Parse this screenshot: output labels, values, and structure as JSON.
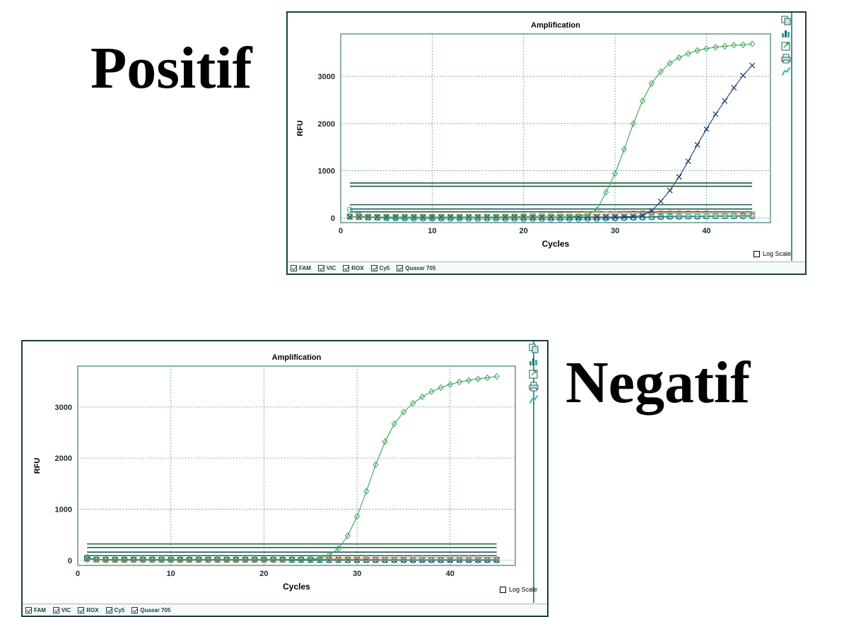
{
  "labels": {
    "positive": "Positif",
    "negative": "Negatif"
  },
  "common": {
    "log_scale_label": "Log Scale",
    "legend": [
      "FAM",
      "VIC",
      "ROX",
      "Cy5",
      "Quasar 705"
    ],
    "tool_icons": [
      "copy-icon",
      "chart-type-icon",
      "export-icon",
      "print-icon",
      "curve-icon"
    ]
  },
  "colors": {
    "FAM": "#3aa35a",
    "Cy5": "#1c3f6e",
    "ROX": "#d4a06b",
    "VIC": "#1b6f6a",
    "Quasar 705": "#2bb3bf",
    "threshold_dark": "#1d5d3a",
    "threshold_teal": "#1b5c5a",
    "grid": "#3b7c78"
  },
  "chart_data": [
    {
      "id": "positive",
      "type": "line",
      "title": "Amplification",
      "xlabel": "Cycles",
      "ylabel": "RFU",
      "xlim": [
        0,
        47
      ],
      "ylim": [
        -100,
        3900
      ],
      "xticks": [
        0,
        10,
        20,
        30,
        40
      ],
      "yticks": [
        0,
        1000,
        2000,
        3000
      ],
      "grid": true,
      "log_scale": false,
      "series": [
        {
          "name": "FAM",
          "marker": "diamond",
          "x": [
            1,
            2,
            3,
            4,
            5,
            6,
            7,
            8,
            9,
            10,
            11,
            12,
            13,
            14,
            15,
            16,
            17,
            18,
            19,
            20,
            21,
            22,
            23,
            24,
            25,
            26,
            27,
            28,
            29,
            30,
            31,
            32,
            33,
            34,
            35,
            36,
            37,
            38,
            39,
            40,
            41,
            42,
            43,
            44,
            45
          ],
          "values": [
            20,
            20,
            20,
            20,
            20,
            20,
            20,
            20,
            20,
            20,
            20,
            20,
            20,
            20,
            20,
            20,
            20,
            20,
            20,
            20,
            20,
            20,
            20,
            20,
            25,
            40,
            70,
            170,
            540,
            940,
            1450,
            2000,
            2480,
            2850,
            3100,
            3280,
            3400,
            3480,
            3550,
            3590,
            3620,
            3640,
            3660,
            3670,
            3690
          ]
        },
        {
          "name": "Cy5",
          "marker": "x",
          "x": [
            1,
            2,
            3,
            4,
            5,
            6,
            7,
            8,
            9,
            10,
            11,
            12,
            13,
            14,
            15,
            16,
            17,
            18,
            19,
            20,
            21,
            22,
            23,
            24,
            25,
            26,
            27,
            28,
            29,
            30,
            31,
            32,
            33,
            34,
            35,
            36,
            37,
            38,
            39,
            40,
            41,
            42,
            43,
            44,
            45
          ],
          "values": [
            20,
            20,
            20,
            20,
            20,
            20,
            20,
            20,
            20,
            20,
            20,
            20,
            20,
            20,
            20,
            20,
            20,
            20,
            20,
            20,
            20,
            20,
            20,
            20,
            20,
            20,
            20,
            20,
            20,
            20,
            25,
            30,
            50,
            150,
            350,
            580,
            870,
            1200,
            1550,
            1880,
            2200,
            2480,
            2760,
            3020,
            3230
          ]
        },
        {
          "name": "ROX",
          "marker": "square",
          "x": [
            1,
            2,
            3,
            4,
            5,
            6,
            7,
            8,
            9,
            10,
            11,
            12,
            13,
            14,
            15,
            16,
            17,
            18,
            19,
            20,
            21,
            22,
            23,
            24,
            25,
            26,
            27,
            28,
            29,
            30,
            31,
            32,
            33,
            34,
            35,
            36,
            37,
            38,
            39,
            40,
            41,
            42,
            43,
            44,
            45
          ],
          "values": [
            40,
            30,
            25,
            20,
            20,
            20,
            20,
            20,
            20,
            20,
            20,
            20,
            20,
            20,
            20,
            20,
            20,
            25,
            30,
            35,
            40,
            45,
            50,
            55,
            60,
            65,
            70,
            75,
            80,
            85,
            90,
            95,
            100,
            100,
            100,
            100,
            100,
            95,
            95,
            95,
            90,
            90,
            90,
            85,
            85
          ]
        },
        {
          "name": "VIC",
          "marker": "square",
          "x": [
            1,
            2,
            3,
            4,
            5,
            6,
            7,
            8,
            9,
            10,
            11,
            12,
            13,
            14,
            15,
            16,
            17,
            18,
            19,
            20,
            21,
            22,
            23,
            24,
            25,
            26,
            27,
            28,
            29,
            30,
            31,
            32,
            33,
            34,
            35,
            36,
            37,
            38,
            39,
            40,
            41,
            42,
            43,
            44,
            45
          ],
          "values": [
            30,
            20,
            10,
            10,
            10,
            10,
            10,
            10,
            10,
            10,
            10,
            10,
            10,
            10,
            10,
            10,
            10,
            10,
            10,
            10,
            10,
            10,
            10,
            10,
            10,
            10,
            10,
            10,
            10,
            10,
            10,
            15,
            20,
            25,
            30,
            35,
            40,
            40,
            40,
            40,
            45,
            45,
            45,
            50,
            50
          ]
        },
        {
          "name": "Quasar 705",
          "marker": "circle",
          "x": [
            1,
            2,
            3,
            4,
            5,
            6,
            7,
            8,
            9,
            10,
            11,
            12,
            13,
            14,
            15,
            16,
            17,
            18,
            19,
            20,
            21,
            22,
            23,
            24,
            25,
            26,
            27,
            28,
            29,
            30,
            31,
            32,
            33,
            34,
            35,
            36,
            37,
            38,
            39,
            40,
            41,
            42,
            43,
            44,
            45
          ],
          "values": [
            180,
            60,
            20,
            0,
            -10,
            -15,
            -20,
            -20,
            -20,
            -20,
            -20,
            -20,
            -20,
            -25,
            -25,
            -25,
            -25,
            -25,
            -25,
            -30,
            -30,
            -30,
            -30,
            -30,
            -30,
            -30,
            -30,
            -30,
            -20,
            -10,
            -5,
            0,
            5,
            10,
            15,
            20,
            20,
            25,
            25,
            30,
            30,
            30,
            30,
            30,
            30
          ]
        }
      ],
      "thresholds": [
        {
          "value": 740,
          "color_key": "threshold_dark"
        },
        {
          "value": 670,
          "color_key": "threshold_dark"
        },
        {
          "value": 280,
          "color_key": "threshold_teal"
        },
        {
          "value": 190,
          "color_key": "threshold_teal"
        },
        {
          "value": 130,
          "color_key": "threshold_dark"
        }
      ],
      "threshold_xrange": [
        1,
        45
      ]
    },
    {
      "id": "negative",
      "type": "line",
      "title": "Amplification",
      "xlabel": "Cycles",
      "ylabel": "RFU",
      "xlim": [
        0,
        47
      ],
      "ylim": [
        -100,
        3800
      ],
      "xticks": [
        0,
        10,
        20,
        30,
        40
      ],
      "yticks": [
        0,
        1000,
        2000,
        3000
      ],
      "grid": true,
      "log_scale": false,
      "series": [
        {
          "name": "FAM",
          "marker": "diamond",
          "x": [
            1,
            2,
            3,
            4,
            5,
            6,
            7,
            8,
            9,
            10,
            11,
            12,
            13,
            14,
            15,
            16,
            17,
            18,
            19,
            20,
            21,
            22,
            23,
            24,
            25,
            26,
            27,
            28,
            29,
            30,
            31,
            32,
            33,
            34,
            35,
            36,
            37,
            38,
            39,
            40,
            41,
            42,
            43,
            44,
            45
          ],
          "values": [
            20,
            20,
            20,
            20,
            20,
            20,
            20,
            20,
            20,
            20,
            20,
            20,
            20,
            20,
            20,
            20,
            20,
            20,
            20,
            20,
            20,
            20,
            20,
            20,
            25,
            40,
            100,
            230,
            480,
            860,
            1350,
            1870,
            2320,
            2670,
            2900,
            3070,
            3200,
            3300,
            3380,
            3440,
            3490,
            3520,
            3550,
            3570,
            3600
          ]
        },
        {
          "name": "ROX",
          "marker": "triangle",
          "x": [
            1,
            2,
            3,
            4,
            5,
            6,
            7,
            8,
            9,
            10,
            11,
            12,
            13,
            14,
            15,
            16,
            17,
            18,
            19,
            20,
            21,
            22,
            23,
            24,
            25,
            26,
            27,
            28,
            29,
            30,
            31,
            32,
            33,
            34,
            35,
            36,
            37,
            38,
            39,
            40,
            41,
            42,
            43,
            44,
            45
          ],
          "values": [
            20,
            10,
            10,
            10,
            10,
            10,
            10,
            10,
            10,
            10,
            10,
            10,
            10,
            10,
            10,
            10,
            10,
            10,
            10,
            10,
            10,
            10,
            15,
            20,
            20,
            25,
            30,
            30,
            35,
            40,
            40,
            45,
            50,
            50,
            50,
            55,
            55,
            55,
            55,
            55,
            55,
            55,
            55,
            55,
            55
          ]
        },
        {
          "name": "VIC",
          "marker": "square",
          "x": [
            1,
            2,
            3,
            4,
            5,
            6,
            7,
            8,
            9,
            10,
            11,
            12,
            13,
            14,
            15,
            16,
            17,
            18,
            19,
            20,
            21,
            22,
            23,
            24,
            25,
            26,
            27,
            28,
            29,
            30,
            31,
            32,
            33,
            34,
            35,
            36,
            37,
            38,
            39,
            40,
            41,
            42,
            43,
            44,
            45
          ],
          "values": [
            40,
            10,
            10,
            10,
            10,
            10,
            10,
            10,
            10,
            10,
            10,
            10,
            10,
            10,
            10,
            10,
            10,
            10,
            10,
            10,
            10,
            10,
            10,
            10,
            10,
            10,
            10,
            10,
            10,
            10,
            10,
            10,
            10,
            10,
            10,
            10,
            10,
            10,
            10,
            10,
            10,
            10,
            10,
            10,
            10
          ]
        },
        {
          "name": "Cy5",
          "marker": "x",
          "x": [
            1,
            2,
            3,
            4,
            5,
            6,
            7,
            8,
            9,
            10,
            11,
            12,
            13,
            14,
            15,
            16,
            17,
            18,
            19,
            20,
            21,
            22,
            23,
            24,
            25,
            26,
            27,
            28,
            29,
            30,
            31,
            32,
            33,
            34,
            35,
            36,
            37,
            38,
            39,
            40,
            41,
            42,
            43,
            44,
            45
          ],
          "values": [
            30,
            10,
            5,
            5,
            5,
            5,
            5,
            5,
            5,
            5,
            5,
            5,
            5,
            5,
            5,
            5,
            5,
            5,
            5,
            5,
            5,
            5,
            5,
            5,
            5,
            5,
            5,
            5,
            5,
            5,
            5,
            5,
            5,
            5,
            5,
            5,
            5,
            5,
            5,
            5,
            5,
            5,
            5,
            5,
            5
          ]
        },
        {
          "name": "Quasar 705",
          "marker": "circle",
          "x": [
            1,
            2,
            3,
            4,
            5,
            6,
            7,
            8,
            9,
            10,
            11,
            12,
            13,
            14,
            15,
            16,
            17,
            18,
            19,
            20,
            21,
            22,
            23,
            24,
            25,
            26,
            27,
            28,
            29,
            30,
            31,
            32,
            33,
            34,
            35,
            36,
            37,
            38,
            39,
            40,
            41,
            42,
            43,
            44,
            45
          ],
          "values": [
            60,
            10,
            0,
            0,
            0,
            0,
            0,
            0,
            0,
            0,
            0,
            0,
            0,
            0,
            0,
            0,
            0,
            0,
            0,
            0,
            0,
            0,
            0,
            0,
            0,
            0,
            0,
            0,
            0,
            0,
            0,
            0,
            0,
            0,
            0,
            0,
            0,
            0,
            0,
            0,
            0,
            0,
            0,
            0,
            0
          ]
        }
      ],
      "thresholds": [
        {
          "value": 320,
          "color_key": "threshold_dark"
        },
        {
          "value": 250,
          "color_key": "threshold_dark"
        },
        {
          "value": 160,
          "color_key": "threshold_teal"
        },
        {
          "value": 90,
          "color_key": "threshold_teal"
        }
      ],
      "threshold_xrange": [
        1,
        45
      ]
    }
  ]
}
